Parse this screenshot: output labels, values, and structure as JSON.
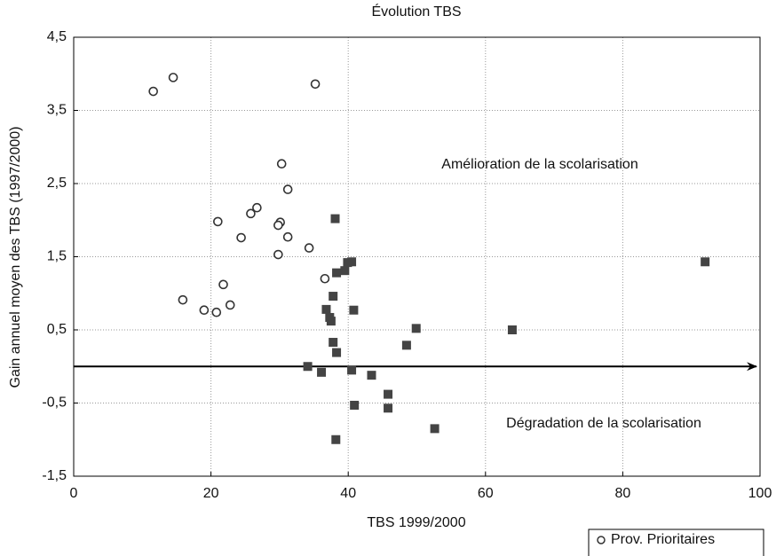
{
  "chart_data": {
    "type": "scatter",
    "title": "Évolution TBS",
    "x_label": "TBS 1999/2000",
    "y_label": "Gain annuel moyen des TBS (1997/2000)",
    "annotations": [
      "Amélioration de la scolarisation",
      "Dégradation de la scolarisation"
    ],
    "xlim": [
      0,
      100
    ],
    "xticks": [
      0,
      20,
      40,
      60,
      80,
      100
    ],
    "ylim": [
      -1.5,
      4.5
    ],
    "yticks": [
      {
        "value": -1.5,
        "label": "-1,5"
      },
      {
        "value": -0.5,
        "label": "-0,5"
      },
      {
        "value": 0.5,
        "label": "0,5"
      },
      {
        "value": 1.5,
        "label": "1,5"
      },
      {
        "value": 2.5,
        "label": "2,5"
      },
      {
        "value": 3.5,
        "label": "3,5"
      },
      {
        "value": 4.5,
        "label": "4,5"
      }
    ],
    "grid": true,
    "series": [
      {
        "name": "Prov. Prioritaires",
        "color": "#333333",
        "marker": "circle",
        "x": [
          11.6,
          14.5,
          35.2,
          30.3,
          31.2,
          26.7,
          25.8,
          21.0,
          30.1,
          29.8,
          24.4,
          31.2,
          34.3,
          29.8,
          36.6,
          21.8,
          15.9,
          22.8,
          19.0,
          20.8
        ],
        "values": [
          3.76,
          3.95,
          3.86,
          2.77,
          2.42,
          2.17,
          2.09,
          1.98,
          1.97,
          1.93,
          1.76,
          1.77,
          1.62,
          1.53,
          1.2,
          1.12,
          0.91,
          0.84,
          0.77,
          0.74
        ]
      },
      {
        "color": "#444444",
        "marker": "square",
        "x": [
          38.1,
          39.9,
          40.5,
          39.5,
          38.3,
          37.8,
          36.8,
          37.3,
          37.5,
          40.8,
          37.8,
          38.3,
          48.5,
          49.9,
          63.9,
          92.0,
          34.1,
          36.1,
          40.5,
          43.4,
          45.8,
          45.8,
          40.9,
          52.6,
          38.2
        ],
        "values": [
          2.02,
          1.42,
          1.43,
          1.31,
          1.28,
          0.96,
          0.78,
          0.67,
          0.62,
          0.77,
          0.33,
          0.19,
          0.29,
          0.52,
          0.5,
          1.43,
          0.0,
          -0.08,
          -0.05,
          -0.12,
          -0.38,
          -0.57,
          -0.53,
          -0.85,
          -1.0
        ]
      }
    ]
  }
}
